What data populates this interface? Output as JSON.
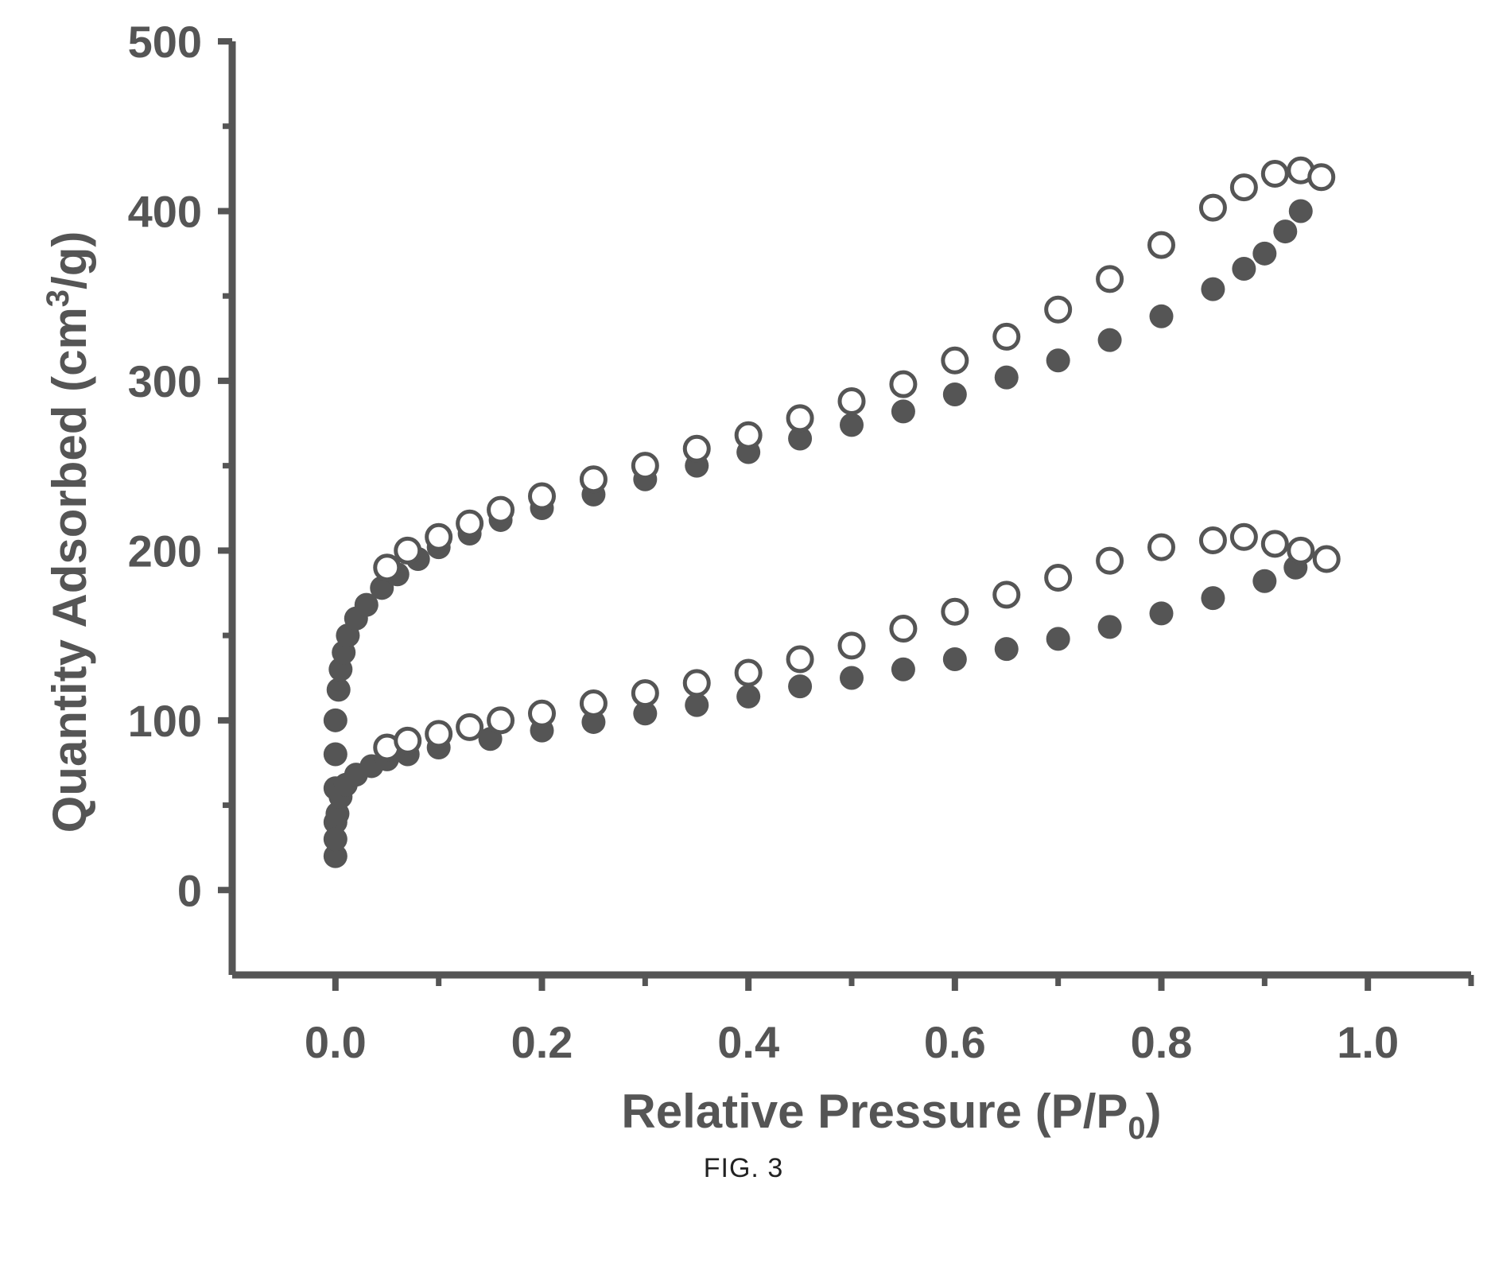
{
  "figure": {
    "caption": "FIG. 3"
  },
  "chart_data": {
    "type": "scatter",
    "xlabel": "Relative Pressure (P/P0)",
    "ylabel": "Quantity Adsorbed (cm3/g)",
    "xlim": [
      -0.1,
      1.1
    ],
    "ylim": [
      -50,
      500
    ],
    "xticks": [
      "0.0",
      "0.2",
      "0.4",
      "0.6",
      "0.8",
      "1.0"
    ],
    "yticks": [
      "0",
      "100",
      "200",
      "300",
      "400",
      "500"
    ],
    "grid": false,
    "colors": {
      "filled": "#555555",
      "open_stroke": "#555555",
      "open_fill": "#ffffff",
      "axis": "#555555"
    },
    "series": [
      {
        "marker": "filled",
        "x": [
          0.0,
          0.0,
          0.0,
          0.0,
          0.003,
          0.005,
          0.008,
          0.012,
          0.02,
          0.03,
          0.045,
          0.06,
          0.08,
          0.1,
          0.13,
          0.16,
          0.2,
          0.25,
          0.3,
          0.35,
          0.4,
          0.45,
          0.5,
          0.55,
          0.6,
          0.65,
          0.7,
          0.75,
          0.8,
          0.85,
          0.88,
          0.9,
          0.92,
          0.935
        ],
        "y": [
          40,
          60,
          80,
          100,
          118,
          130,
          140,
          150,
          160,
          168,
          178,
          186,
          195,
          202,
          210,
          218,
          225,
          233,
          242,
          250,
          258,
          266,
          274,
          282,
          292,
          302,
          312,
          324,
          338,
          354,
          366,
          375,
          388,
          400
        ]
      },
      {
        "marker": "open",
        "x": [
          0.05,
          0.07,
          0.1,
          0.13,
          0.16,
          0.2,
          0.25,
          0.3,
          0.35,
          0.4,
          0.45,
          0.5,
          0.55,
          0.6,
          0.65,
          0.7,
          0.75,
          0.8,
          0.85,
          0.88,
          0.91,
          0.935,
          0.955
        ],
        "y": [
          190,
          200,
          208,
          216,
          224,
          232,
          242,
          250,
          260,
          268,
          278,
          288,
          298,
          312,
          326,
          342,
          360,
          380,
          402,
          414,
          422,
          424,
          420
        ]
      },
      {
        "marker": "filled",
        "x": [
          0.0,
          0.0,
          0.002,
          0.005,
          0.01,
          0.02,
          0.035,
          0.05,
          0.07,
          0.1,
          0.15,
          0.2,
          0.25,
          0.3,
          0.35,
          0.4,
          0.45,
          0.5,
          0.55,
          0.6,
          0.65,
          0.7,
          0.75,
          0.8,
          0.85,
          0.9,
          0.93
        ],
        "y": [
          20,
          30,
          45,
          55,
          62,
          68,
          73,
          77,
          80,
          84,
          89,
          94,
          99,
          104,
          109,
          114,
          120,
          125,
          130,
          136,
          142,
          148,
          155,
          163,
          172,
          182,
          190
        ]
      },
      {
        "marker": "open",
        "x": [
          0.05,
          0.07,
          0.1,
          0.13,
          0.16,
          0.2,
          0.25,
          0.3,
          0.35,
          0.4,
          0.45,
          0.5,
          0.55,
          0.6,
          0.65,
          0.7,
          0.75,
          0.8,
          0.85,
          0.88,
          0.91,
          0.935,
          0.96
        ],
        "y": [
          84,
          88,
          92,
          96,
          100,
          104,
          110,
          116,
          122,
          128,
          136,
          144,
          154,
          164,
          174,
          184,
          194,
          202,
          206,
          208,
          204,
          200,
          195
        ]
      }
    ]
  }
}
